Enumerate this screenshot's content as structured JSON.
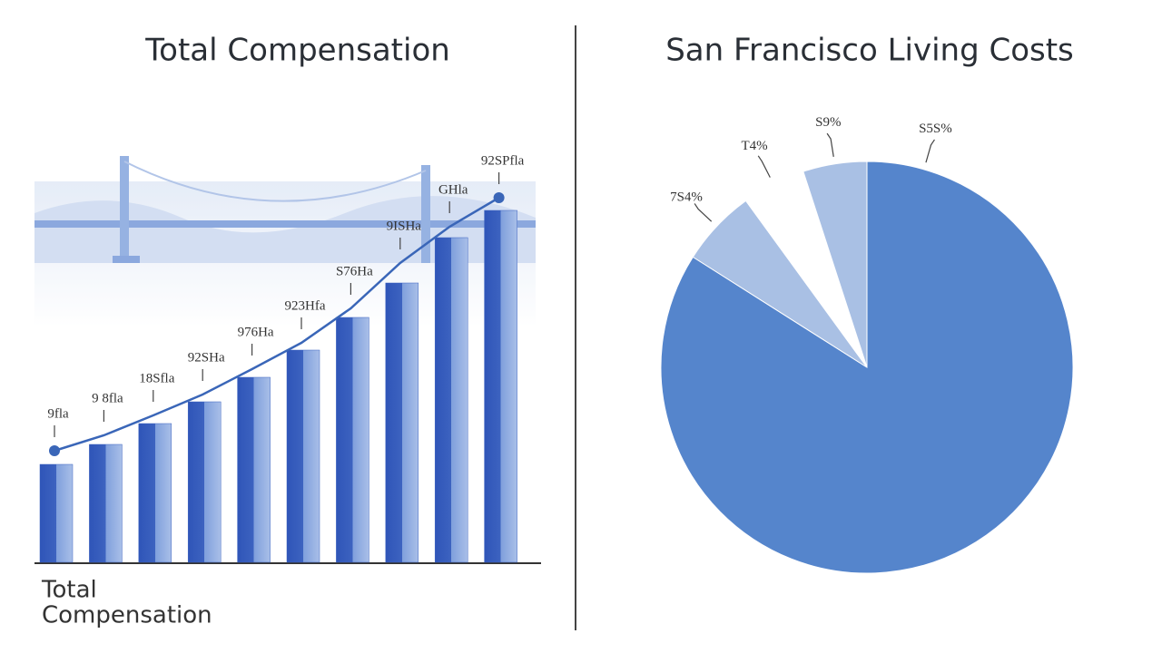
{
  "chart_data": [
    {
      "type": "bar",
      "title": "Total Compensation",
      "x_label": [
        "Total",
        "Compensation"
      ],
      "categories": [
        null,
        null,
        null,
        null,
        null,
        null,
        null,
        null,
        null,
        null
      ],
      "ylim": [
        0,
        420
      ],
      "series": [
        {
          "type": "bar",
          "color": "#3d63c0",
          "values": [
            108,
            130,
            153,
            177,
            204,
            234,
            270,
            308,
            358,
            388
          ]
        },
        {
          "type": "line",
          "color": "#3a66b8",
          "values": [
            123,
            140,
            162,
            185,
            213,
            242,
            280,
            330,
            370,
            402
          ],
          "value_labels": [
            "9fla",
            "9 8fla",
            "18Sfla",
            "92SHa",
            "976Ha",
            "923Hfa",
            "S76Ha",
            "9ISHa",
            "GHla",
            "92SPfla"
          ]
        }
      ]
    },
    {
      "type": "pie",
      "title": "San Francisco Living Costs",
      "values": [
        84,
        6,
        5,
        5
      ],
      "value_labels": [
        "S5S%",
        "7S4%",
        "T4%",
        "S9%"
      ],
      "colors": [
        "#5585cc",
        "#a9c0e4",
        "#ffffff",
        "#a9c0e4"
      ]
    }
  ]
}
